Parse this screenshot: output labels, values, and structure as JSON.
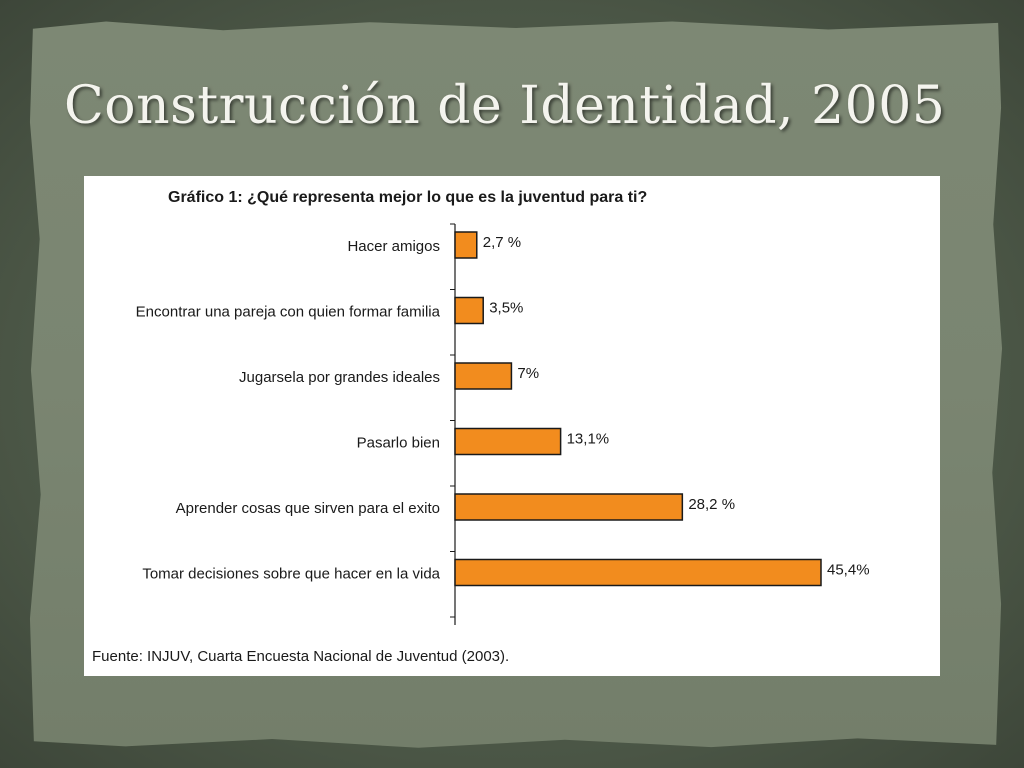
{
  "slide": {
    "title": "Construcción de Identidad, 2005",
    "source": "Fuente: INJUV, Cuarta Encuesta Nacional de Juventud (2003)."
  },
  "colors": {
    "background": "#4f5a4a",
    "paper": "#7a8571",
    "bar_fill": "#f28c1e",
    "bar_stroke": "#1a1a1a"
  },
  "chart_data": {
    "type": "bar",
    "orientation": "horizontal",
    "title": "Gráfico 1: ¿Qué representa mejor lo que es la juventud para ti?",
    "categories": [
      "Hacer amigos",
      "Encontrar una pareja con quien formar familia",
      "Jugarsela por grandes ideales",
      "Pasarlo bien",
      "Aprender cosas que sirven para el exito",
      "Tomar decisiones sobre que hacer en la vida"
    ],
    "values": [
      2.7,
      3.5,
      7,
      13.1,
      28.2,
      45.4
    ],
    "value_labels": [
      "2,7 %",
      "3,5%",
      "7%",
      "13,1%",
      "28,2 %",
      "45,4%"
    ],
    "unit": "%",
    "xlim": [
      0,
      45.4
    ],
    "grid": false,
    "legend": "none"
  }
}
